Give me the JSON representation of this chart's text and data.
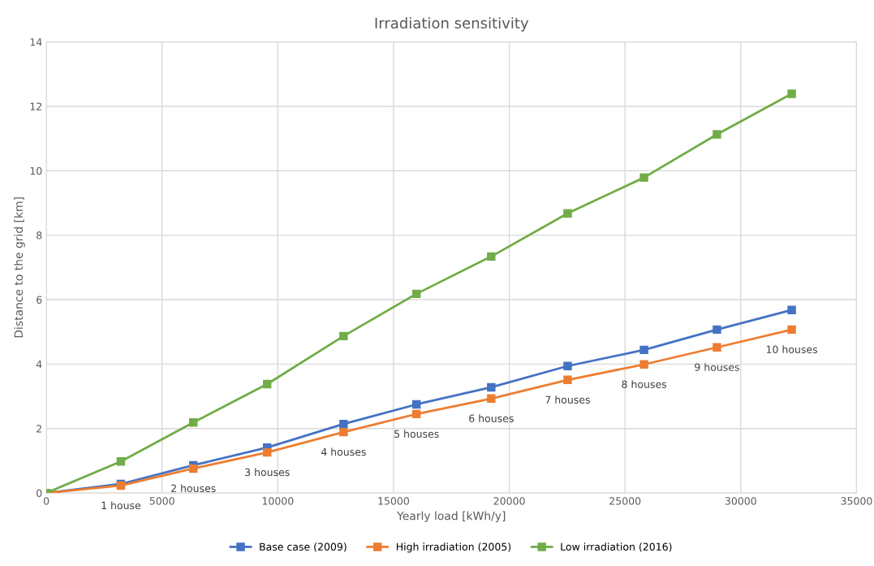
{
  "chart_data": {
    "type": "line",
    "title": "Irradiation sensitivity",
    "xlabel": "Yearly load [kWh/y]",
    "ylabel": "Distance to the grid [km]",
    "x": [
      0,
      3220,
      6350,
      9540,
      12840,
      15990,
      19220,
      22520,
      25820,
      28970,
      32200
    ],
    "series": [
      {
        "name": "Base case (2009)",
        "color": "#4472c4",
        "values": [
          0,
          0.28,
          0.86,
          1.41,
          2.14,
          2.75,
          3.28,
          3.94,
          4.44,
          5.07,
          5.68
        ]
      },
      {
        "name": "High irradiation (2005)",
        "color": "#ed7d31",
        "values": [
          0,
          0.23,
          0.76,
          1.26,
          1.89,
          2.45,
          2.93,
          3.51,
          3.99,
          4.52,
          5.07
        ]
      },
      {
        "name": "Low irradiation (2016)",
        "color": "#70ad47",
        "values": [
          0,
          0.98,
          2.19,
          3.38,
          4.87,
          6.18,
          7.34,
          8.68,
          9.79,
          11.13,
          12.39
        ]
      }
    ],
    "annotations": [
      {
        "text": "1 house",
        "x": 3220,
        "y": 0.23
      },
      {
        "text": "2 houses",
        "x": 6350,
        "y": 0.76
      },
      {
        "text": "3 houses",
        "x": 9540,
        "y": 1.26
      },
      {
        "text": "4 houses",
        "x": 12840,
        "y": 1.89
      },
      {
        "text": "5 houses",
        "x": 15990,
        "y": 2.45
      },
      {
        "text": "6 houses",
        "x": 19220,
        "y": 2.93
      },
      {
        "text": "7 houses",
        "x": 22520,
        "y": 3.51
      },
      {
        "text": "8 houses",
        "x": 25820,
        "y": 3.99
      },
      {
        "text": "9 houses",
        "x": 28970,
        "y": 4.52
      },
      {
        "text": "10 houses",
        "x": 32200,
        "y": 5.07
      }
    ],
    "xlim": [
      0,
      35000
    ],
    "xticks": [
      0,
      5000,
      10000,
      15000,
      20000,
      25000,
      30000,
      35000
    ],
    "ylim": [
      0,
      14
    ],
    "yticks": [
      0,
      2,
      4,
      6,
      8,
      10,
      12,
      14
    ],
    "grid": true,
    "legend": "bottom",
    "marker": "square",
    "line_style": "solid"
  }
}
